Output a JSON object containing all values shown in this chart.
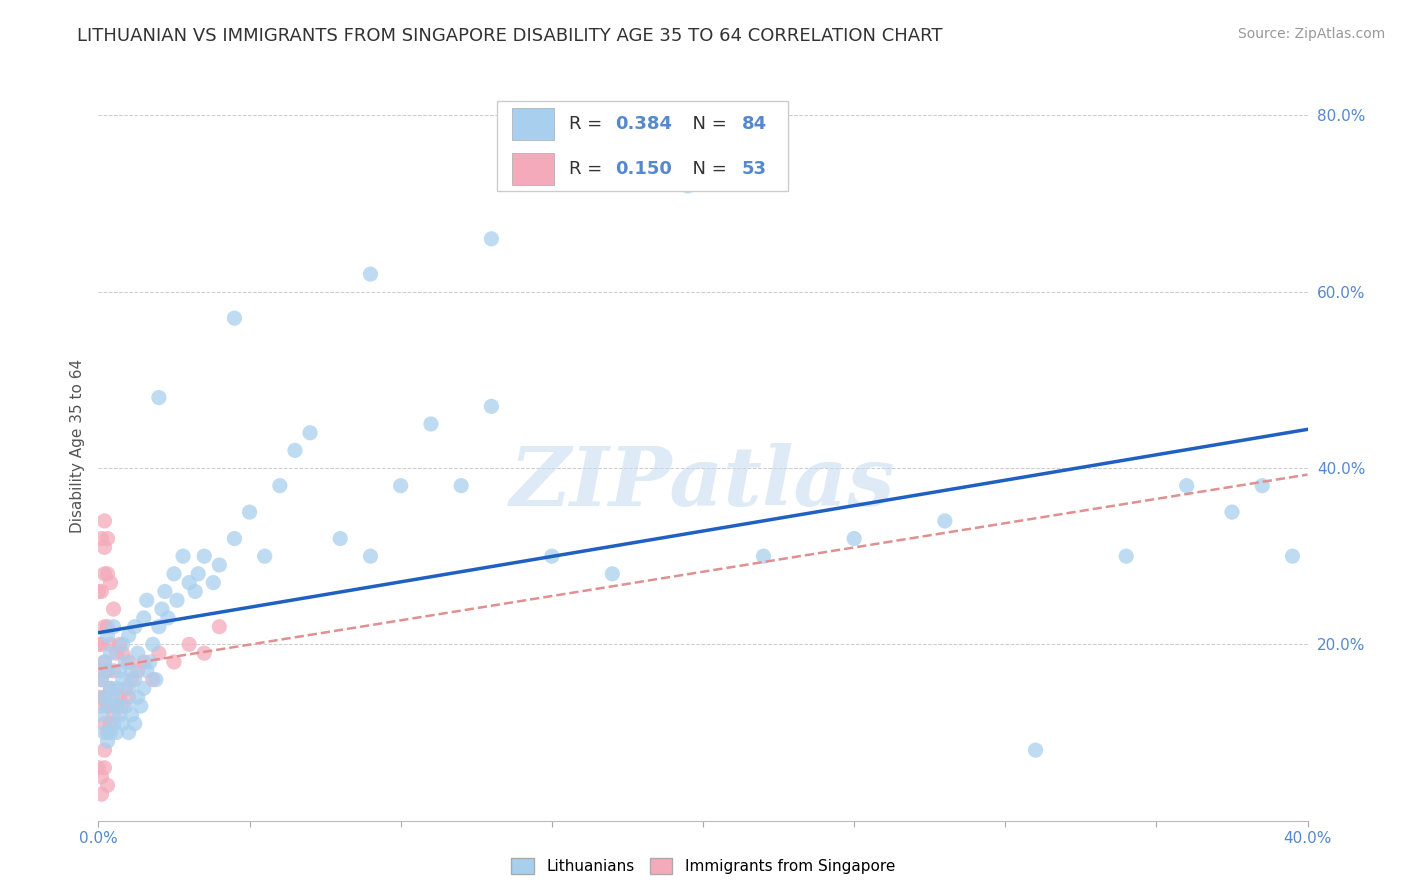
{
  "title": "LITHUANIAN VS IMMIGRANTS FROM SINGAPORE DISABILITY AGE 35 TO 64 CORRELATION CHART",
  "source": "Source: ZipAtlas.com",
  "ylabel": "Disability Age 35 to 64",
  "legend_labels": [
    "Lithuanians",
    "Immigrants from Singapore"
  ],
  "r_blue": 0.384,
  "n_blue": 84,
  "r_pink": 0.15,
  "n_pink": 53,
  "blue_color": "#A8D0EE",
  "pink_color": "#F4AABA",
  "blue_line_color": "#2060C0",
  "pink_line_color": "#E09090",
  "xlim": [
    0.0,
    0.4
  ],
  "ylim": [
    0.0,
    0.85
  ],
  "yticks": [
    0.0,
    0.2,
    0.4,
    0.6,
    0.8
  ],
  "ytick_labels": [
    "",
    "20.0%",
    "40.0%",
    "60.0%",
    "80.0%"
  ],
  "blue_scatter_x": [
    0.001,
    0.001,
    0.002,
    0.002,
    0.002,
    0.003,
    0.003,
    0.003,
    0.003,
    0.004,
    0.004,
    0.004,
    0.005,
    0.005,
    0.005,
    0.006,
    0.006,
    0.006,
    0.007,
    0.007,
    0.008,
    0.008,
    0.008,
    0.009,
    0.009,
    0.01,
    0.01,
    0.01,
    0.011,
    0.011,
    0.012,
    0.012,
    0.012,
    0.013,
    0.013,
    0.014,
    0.015,
    0.015,
    0.016,
    0.016,
    0.017,
    0.018,
    0.019,
    0.02,
    0.021,
    0.022,
    0.023,
    0.025,
    0.026,
    0.028,
    0.03,
    0.032,
    0.033,
    0.035,
    0.038,
    0.04,
    0.045,
    0.05,
    0.055,
    0.06,
    0.065,
    0.07,
    0.08,
    0.09,
    0.1,
    0.11,
    0.12,
    0.13,
    0.15,
    0.17,
    0.195,
    0.22,
    0.25,
    0.28,
    0.31,
    0.34,
    0.36,
    0.375,
    0.385,
    0.395,
    0.13,
    0.02,
    0.045,
    0.09
  ],
  "blue_scatter_y": [
    0.12,
    0.16,
    0.1,
    0.14,
    0.18,
    0.09,
    0.13,
    0.17,
    0.21,
    0.1,
    0.15,
    0.19,
    0.11,
    0.14,
    0.22,
    0.1,
    0.15,
    0.13,
    0.12,
    0.17,
    0.11,
    0.16,
    0.2,
    0.13,
    0.18,
    0.1,
    0.15,
    0.21,
    0.12,
    0.17,
    0.11,
    0.16,
    0.22,
    0.14,
    0.19,
    0.13,
    0.15,
    0.23,
    0.17,
    0.25,
    0.18,
    0.2,
    0.16,
    0.22,
    0.24,
    0.26,
    0.23,
    0.28,
    0.25,
    0.3,
    0.27,
    0.26,
    0.28,
    0.3,
    0.27,
    0.29,
    0.32,
    0.35,
    0.3,
    0.38,
    0.42,
    0.44,
    0.32,
    0.3,
    0.38,
    0.45,
    0.38,
    0.66,
    0.3,
    0.28,
    0.72,
    0.3,
    0.32,
    0.34,
    0.08,
    0.3,
    0.38,
    0.35,
    0.38,
    0.3,
    0.47,
    0.48,
    0.57,
    0.62
  ],
  "pink_scatter_x": [
    0.0,
    0.0,
    0.0,
    0.0,
    0.001,
    0.001,
    0.001,
    0.001,
    0.001,
    0.002,
    0.002,
    0.002,
    0.002,
    0.002,
    0.002,
    0.002,
    0.003,
    0.003,
    0.003,
    0.003,
    0.003,
    0.003,
    0.004,
    0.004,
    0.004,
    0.004,
    0.005,
    0.005,
    0.005,
    0.006,
    0.006,
    0.007,
    0.007,
    0.008,
    0.008,
    0.009,
    0.01,
    0.01,
    0.011,
    0.013,
    0.015,
    0.018,
    0.02,
    0.025,
    0.03,
    0.035,
    0.04,
    0.002,
    0.002,
    0.001,
    0.003,
    0.001,
    0.0
  ],
  "pink_scatter_y": [
    0.14,
    0.17,
    0.2,
    0.26,
    0.13,
    0.16,
    0.2,
    0.26,
    0.32,
    0.11,
    0.14,
    0.18,
    0.22,
    0.28,
    0.31,
    0.34,
    0.1,
    0.13,
    0.17,
    0.22,
    0.28,
    0.32,
    0.11,
    0.15,
    0.2,
    0.27,
    0.12,
    0.17,
    0.24,
    0.13,
    0.19,
    0.14,
    0.2,
    0.13,
    0.19,
    0.15,
    0.14,
    0.18,
    0.16,
    0.17,
    0.18,
    0.16,
    0.19,
    0.18,
    0.2,
    0.19,
    0.22,
    0.08,
    0.06,
    0.05,
    0.04,
    0.03,
    0.06
  ],
  "title_fontsize": 13,
  "axis_label_fontsize": 11,
  "tick_fontsize": 11,
  "source_fontsize": 10
}
